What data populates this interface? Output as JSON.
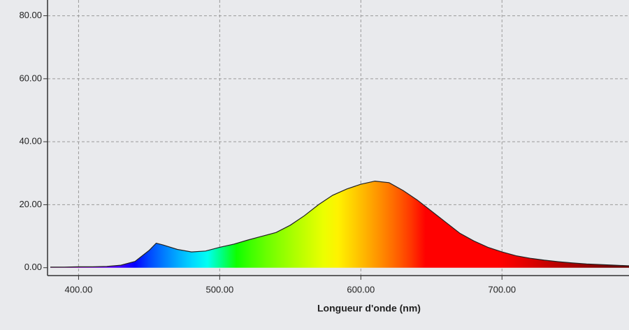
{
  "chart_data": {
    "type": "area",
    "x_label": "Longueur d'onde (nm)",
    "x": [
      380,
      390,
      400,
      410,
      420,
      430,
      440,
      450,
      455,
      460,
      470,
      480,
      490,
      500,
      510,
      520,
      530,
      540,
      550,
      560,
      570,
      580,
      590,
      600,
      610,
      620,
      630,
      640,
      650,
      660,
      670,
      680,
      690,
      700,
      710,
      720,
      730,
      740,
      750,
      760,
      770,
      780,
      790
    ],
    "values": [
      0.2,
      0.2,
      0.3,
      0.3,
      0.4,
      0.8,
      2.0,
      5.5,
      7.8,
      7.2,
      5.8,
      5.0,
      5.3,
      6.5,
      7.5,
      8.8,
      10.0,
      11.2,
      13.5,
      16.5,
      20,
      23,
      25,
      26.5,
      27.5,
      27,
      24.5,
      21.5,
      18,
      14.5,
      11,
      8.5,
      6.5,
      5,
      3.8,
      3,
      2.4,
      1.9,
      1.5,
      1.2,
      1,
      0.8,
      0.6
    ],
    "xlim": [
      378,
      790
    ],
    "ylim": [
      -2.5,
      85
    ],
    "xticks": [
      {
        "value": 400,
        "label": "400.00"
      },
      {
        "value": 500,
        "label": "500.00"
      },
      {
        "value": 600,
        "label": "600.00"
      },
      {
        "value": 700,
        "label": "700.00"
      }
    ],
    "yticks": [
      {
        "value": 0,
        "label": "0.00"
      },
      {
        "value": 20,
        "label": "20.00"
      },
      {
        "value": 40,
        "label": "40.00"
      },
      {
        "value": 60,
        "label": "60.00"
      },
      {
        "value": 80,
        "label": "80.00"
      }
    ],
    "grid": true,
    "line_color": "#222222"
  }
}
